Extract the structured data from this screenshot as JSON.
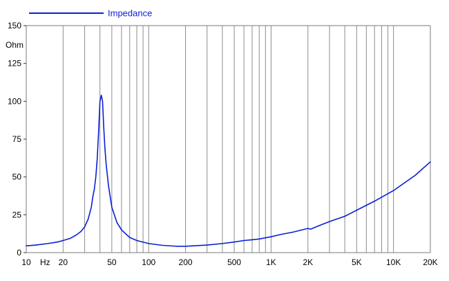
{
  "chart_data": {
    "type": "line",
    "title": "",
    "ylabel": "Ohm",
    "xlabel_unit": "Hz",
    "x_scale": "log",
    "xlim": [
      10,
      20000
    ],
    "ylim": [
      0,
      150
    ],
    "grid": "vertical",
    "legend_position": "top-left",
    "y_ticks": [
      0,
      25,
      50,
      75,
      100,
      125,
      150
    ],
    "x_ticks": [
      {
        "value": 10,
        "label": "10"
      },
      {
        "value": 20,
        "label": "20"
      },
      {
        "value": 50,
        "label": "50"
      },
      {
        "value": 100,
        "label": "100"
      },
      {
        "value": 200,
        "label": "200"
      },
      {
        "value": 500,
        "label": "500"
      },
      {
        "value": 1000,
        "label": "1K"
      },
      {
        "value": 2000,
        "label": "2K"
      },
      {
        "value": 5000,
        "label": "5K"
      },
      {
        "value": 10000,
        "label": "10K"
      },
      {
        "value": 20000,
        "label": "20K"
      }
    ],
    "series": [
      {
        "name": "Impedance",
        "color": "#0a1ed2",
        "x": [
          10,
          12,
          15,
          18,
          20,
          23,
          26,
          28,
          30,
          32,
          34,
          35,
          36,
          37,
          38,
          39,
          40,
          41,
          42,
          43,
          44,
          45,
          47,
          50,
          55,
          60,
          70,
          80,
          100,
          130,
          170,
          200,
          300,
          400,
          500,
          600,
          700,
          800,
          1000,
          1200,
          1500,
          2000,
          2100,
          2500,
          3000,
          4000,
          5000,
          7000,
          10000,
          15000,
          20000
        ],
        "values": [
          4.5,
          5,
          6,
          7,
          8,
          9.5,
          12,
          14,
          17,
          22,
          30,
          37,
          42,
          50,
          62,
          80,
          100,
          104,
          100,
          82,
          68,
          58,
          44,
          30,
          20,
          15,
          10,
          8,
          6,
          4.8,
          4.2,
          4.2,
          5,
          6,
          7,
          8,
          8.5,
          9,
          10.5,
          12,
          13.5,
          16,
          15.5,
          18,
          20.5,
          24,
          28,
          34,
          41,
          51,
          60
        ]
      }
    ]
  }
}
